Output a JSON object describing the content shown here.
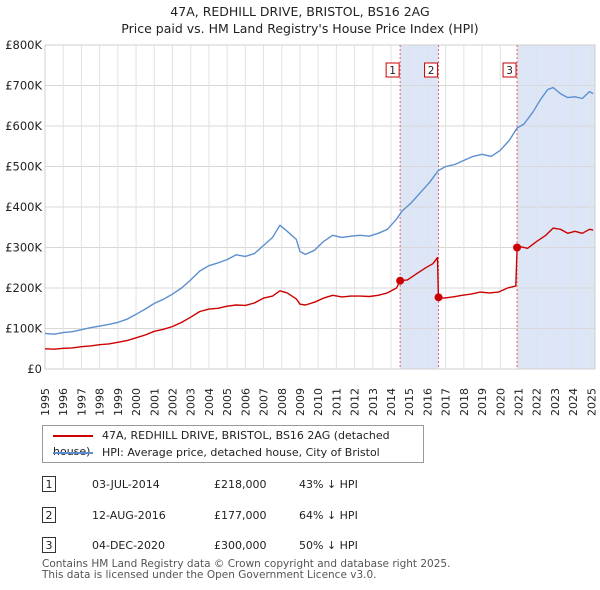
{
  "header": {
    "title_line1": "47A, REDHILL DRIVE, BRISTOL, BS16 2AG",
    "title_line2": "Price paid vs. HM Land Registry's House Price Index (HPI)"
  },
  "chart_data": {
    "type": "line",
    "title": "47A, REDHILL DRIVE, BRISTOL, BS16 2AG — Price paid vs. HM Land Registry's House Price Index (HPI)",
    "xlabel": "",
    "ylabel": "",
    "xlim": [
      1995.0,
      2025.2
    ],
    "ylim": [
      0,
      800000
    ],
    "y_ticks": [
      0,
      100000,
      200000,
      300000,
      400000,
      500000,
      600000,
      700000,
      800000
    ],
    "y_tick_labels": [
      "£0",
      "£100K",
      "£200K",
      "£300K",
      "£400K",
      "£500K",
      "£600K",
      "£700K",
      "£800K"
    ],
    "x_ticks": [
      1995,
      1996,
      1997,
      1998,
      1999,
      2000,
      2001,
      2002,
      2003,
      2004,
      2005,
      2006,
      2007,
      2008,
      2009,
      2010,
      2011,
      2012,
      2013,
      2014,
      2015,
      2016,
      2017,
      2018,
      2019,
      2020,
      2021,
      2022,
      2023,
      2024,
      2025
    ],
    "grid": true,
    "colors": {
      "property": "#cc0000",
      "hpi": "#5b8fd0",
      "shade": "#dde6f6",
      "marker_line": "#dd6666"
    },
    "series": [
      {
        "name": "47A, REDHILL DRIVE, BRISTOL, BS16 2AG (detached house)",
        "color": "#cc0000",
        "points": [
          [
            1995.0,
            50000
          ],
          [
            1995.5,
            49000
          ],
          [
            1996.0,
            51000
          ],
          [
            1996.5,
            52000
          ],
          [
            1997.0,
            55000
          ],
          [
            1997.5,
            57000
          ],
          [
            1998.0,
            60000
          ],
          [
            1998.5,
            62000
          ],
          [
            1999.0,
            66000
          ],
          [
            1999.5,
            70000
          ],
          [
            2000.0,
            77000
          ],
          [
            2000.5,
            84000
          ],
          [
            2001.0,
            93000
          ],
          [
            2001.5,
            98000
          ],
          [
            2002.0,
            105000
          ],
          [
            2002.5,
            115000
          ],
          [
            2003.0,
            128000
          ],
          [
            2003.5,
            142000
          ],
          [
            2004.0,
            148000
          ],
          [
            2004.5,
            150000
          ],
          [
            2005.0,
            155000
          ],
          [
            2005.5,
            158000
          ],
          [
            2006.0,
            157000
          ],
          [
            2006.5,
            163000
          ],
          [
            2007.0,
            175000
          ],
          [
            2007.5,
            180000
          ],
          [
            2007.9,
            193000
          ],
          [
            2008.3,
            188000
          ],
          [
            2008.8,
            173000
          ],
          [
            2009.0,
            160000
          ],
          [
            2009.3,
            158000
          ],
          [
            2009.8,
            165000
          ],
          [
            2010.3,
            175000
          ],
          [
            2010.8,
            182000
          ],
          [
            2011.3,
            178000
          ],
          [
            2011.8,
            180000
          ],
          [
            2012.3,
            180000
          ],
          [
            2012.8,
            179000
          ],
          [
            2013.3,
            182000
          ],
          [
            2013.8,
            188000
          ],
          [
            2014.3,
            200000
          ],
          [
            2014.5,
            218000
          ],
          [
            2014.9,
            220000
          ],
          [
            2015.4,
            235000
          ],
          [
            2015.9,
            250000
          ],
          [
            2016.3,
            260000
          ],
          [
            2016.55,
            275000
          ],
          [
            2016.6,
            177000
          ],
          [
            2016.9,
            175000
          ],
          [
            2017.4,
            178000
          ],
          [
            2017.9,
            182000
          ],
          [
            2018.4,
            185000
          ],
          [
            2018.9,
            190000
          ],
          [
            2019.4,
            188000
          ],
          [
            2019.9,
            190000
          ],
          [
            2020.4,
            200000
          ],
          [
            2020.85,
            205000
          ],
          [
            2020.92,
            300000
          ],
          [
            2021.1,
            302000
          ],
          [
            2021.5,
            298000
          ],
          [
            2022.0,
            315000
          ],
          [
            2022.5,
            330000
          ],
          [
            2022.9,
            348000
          ],
          [
            2023.3,
            345000
          ],
          [
            2023.7,
            335000
          ],
          [
            2024.1,
            340000
          ],
          [
            2024.5,
            335000
          ],
          [
            2024.9,
            345000
          ],
          [
            2025.1,
            343000
          ]
        ]
      },
      {
        "name": "HPI: Average price, detached house, City of Bristol",
        "color": "#5b8fd0",
        "points": [
          [
            1995.0,
            88000
          ],
          [
            1995.5,
            86000
          ],
          [
            1996.0,
            90000
          ],
          [
            1996.5,
            92000
          ],
          [
            1997.0,
            97000
          ],
          [
            1997.5,
            102000
          ],
          [
            1998.0,
            106000
          ],
          [
            1998.5,
            110000
          ],
          [
            1999.0,
            115000
          ],
          [
            1999.5,
            123000
          ],
          [
            2000.0,
            135000
          ],
          [
            2000.5,
            148000
          ],
          [
            2001.0,
            162000
          ],
          [
            2001.5,
            172000
          ],
          [
            2002.0,
            185000
          ],
          [
            2002.5,
            200000
          ],
          [
            2003.0,
            220000
          ],
          [
            2003.5,
            242000
          ],
          [
            2004.0,
            255000
          ],
          [
            2004.5,
            262000
          ],
          [
            2005.0,
            270000
          ],
          [
            2005.5,
            282000
          ],
          [
            2006.0,
            278000
          ],
          [
            2006.5,
            285000
          ],
          [
            2007.0,
            305000
          ],
          [
            2007.5,
            325000
          ],
          [
            2007.9,
            355000
          ],
          [
            2008.3,
            340000
          ],
          [
            2008.8,
            320000
          ],
          [
            2009.0,
            290000
          ],
          [
            2009.3,
            283000
          ],
          [
            2009.8,
            293000
          ],
          [
            2010.3,
            315000
          ],
          [
            2010.8,
            330000
          ],
          [
            2011.3,
            325000
          ],
          [
            2011.8,
            328000
          ],
          [
            2012.3,
            330000
          ],
          [
            2012.8,
            328000
          ],
          [
            2013.3,
            335000
          ],
          [
            2013.8,
            345000
          ],
          [
            2014.3,
            370000
          ],
          [
            2014.6,
            390000
          ],
          [
            2015.1,
            410000
          ],
          [
            2015.6,
            435000
          ],
          [
            2016.1,
            460000
          ],
          [
            2016.6,
            490000
          ],
          [
            2017.0,
            500000
          ],
          [
            2017.5,
            505000
          ],
          [
            2018.0,
            515000
          ],
          [
            2018.5,
            525000
          ],
          [
            2019.0,
            530000
          ],
          [
            2019.5,
            525000
          ],
          [
            2020.0,
            540000
          ],
          [
            2020.5,
            565000
          ],
          [
            2020.92,
            595000
          ],
          [
            2021.3,
            605000
          ],
          [
            2021.8,
            635000
          ],
          [
            2022.2,
            665000
          ],
          [
            2022.6,
            690000
          ],
          [
            2022.9,
            695000
          ],
          [
            2023.3,
            680000
          ],
          [
            2023.7,
            670000
          ],
          [
            2024.1,
            672000
          ],
          [
            2024.5,
            668000
          ],
          [
            2024.9,
            685000
          ],
          [
            2025.1,
            680000
          ]
        ]
      }
    ],
    "sales": [
      {
        "label": "1",
        "x": 2014.5,
        "price": 218000
      },
      {
        "label": "2",
        "x": 2016.61,
        "price": 177000
      },
      {
        "label": "3",
        "x": 2020.92,
        "price": 300000
      }
    ],
    "shaded_ranges": [
      [
        2014.5,
        2016.61
      ],
      [
        2020.92,
        2025.2
      ]
    ]
  },
  "legend": {
    "property_label": "47A, REDHILL DRIVE, BRISTOL, BS16 2AG (detached house)",
    "hpi_label": "HPI: Average price, detached house, City of Bristol"
  },
  "transactions": [
    {
      "num": "1",
      "date": "03-JUL-2014",
      "price": "£218,000",
      "hpi": "43% ↓ HPI"
    },
    {
      "num": "2",
      "date": "12-AUG-2016",
      "price": "£177,000",
      "hpi": "64% ↓ HPI"
    },
    {
      "num": "3",
      "date": "04-DEC-2020",
      "price": "£300,000",
      "hpi": "50% ↓ HPI"
    }
  ],
  "footer": {
    "line1": "Contains HM Land Registry data © Crown copyright and database right 2025.",
    "line2": "This data is licensed under the Open Government Licence v3.0."
  }
}
